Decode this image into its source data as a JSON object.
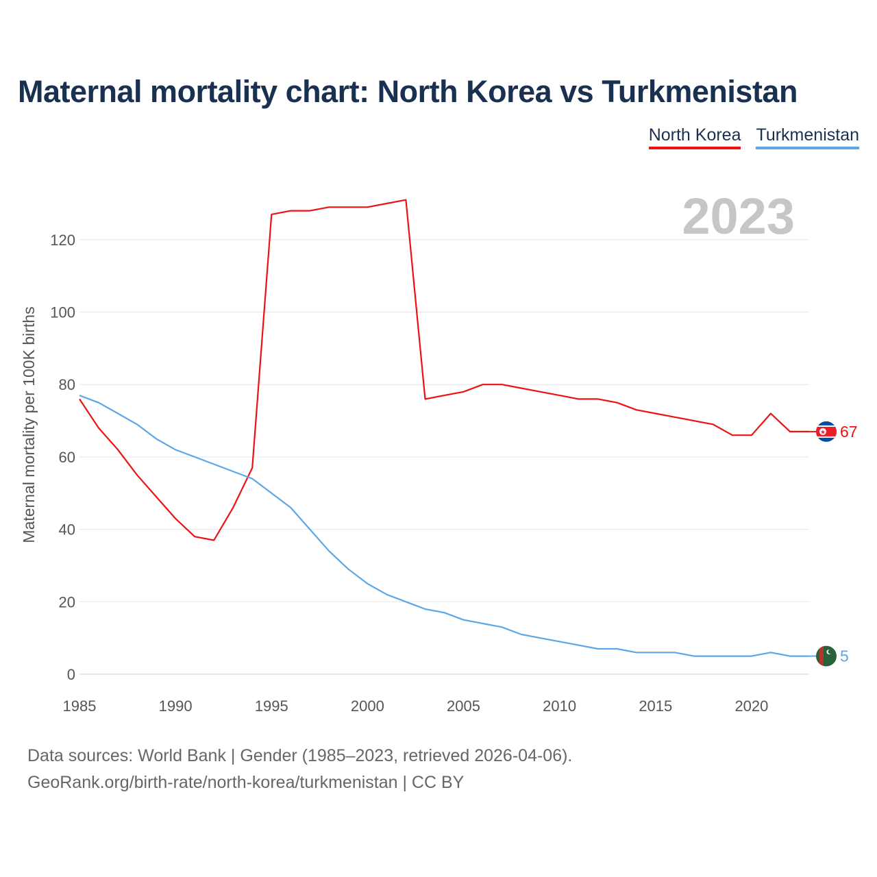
{
  "chart_data": {
    "type": "line",
    "title": "Maternal mortality chart: North Korea vs Turkmenistan",
    "ylabel": "Maternal mortality per 100K births",
    "xlabel": "",
    "ylim": [
      0,
      130
    ],
    "xlim": [
      1985,
      2023
    ],
    "year_watermark": "2023",
    "y_ticks": [
      0,
      20,
      40,
      60,
      80,
      100,
      120
    ],
    "x_ticks": [
      1985,
      1990,
      1995,
      2000,
      2005,
      2010,
      2015,
      2020
    ],
    "grid": true,
    "legend_position": "top-right",
    "x": [
      1985,
      1986,
      1987,
      1988,
      1989,
      1990,
      1991,
      1992,
      1993,
      1994,
      1995,
      1996,
      1997,
      1998,
      1999,
      2000,
      2001,
      2002,
      2003,
      2004,
      2005,
      2006,
      2007,
      2008,
      2009,
      2010,
      2011,
      2012,
      2013,
      2014,
      2015,
      2016,
      2017,
      2018,
      2019,
      2020,
      2021,
      2022,
      2023
    ],
    "series": [
      {
        "name": "North Korea",
        "color": "#ee1111",
        "end_label": "67",
        "flag_icon": "north-korea-flag-icon",
        "values": [
          76,
          68,
          62,
          55,
          49,
          43,
          38,
          37,
          46,
          57,
          127,
          128,
          128,
          129,
          129,
          129,
          130,
          131,
          76,
          77,
          78,
          80,
          80,
          79,
          78,
          77,
          76,
          76,
          75,
          73,
          72,
          71,
          70,
          69,
          66,
          66,
          72,
          67,
          67
        ]
      },
      {
        "name": "Turkmenistan",
        "color": "#5ba6e6",
        "end_label": "5",
        "flag_icon": "turkmenistan-flag-icon",
        "values": [
          77,
          75,
          72,
          69,
          65,
          62,
          60,
          58,
          56,
          54,
          50,
          46,
          40,
          34,
          29,
          25,
          22,
          20,
          18,
          17,
          15,
          14,
          13,
          11,
          10,
          9,
          8,
          7,
          7,
          6,
          6,
          6,
          5,
          5,
          5,
          5,
          6,
          5,
          5
        ]
      }
    ]
  },
  "footer": {
    "sources": "Data sources: World Bank | Gender (1985–2023, retrieved 2026-04-06).",
    "credit": "GeoRank.org/birth-rate/north-korea/turkmenistan | CC BY"
  }
}
